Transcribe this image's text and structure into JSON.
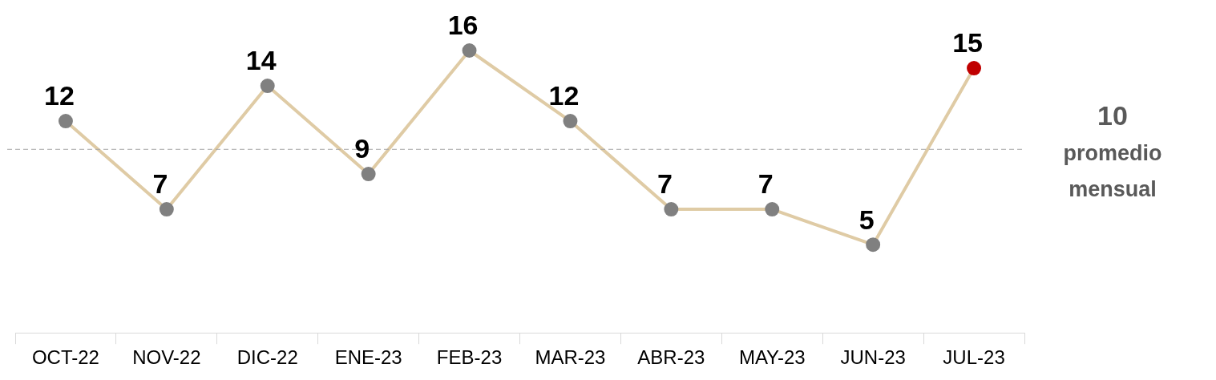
{
  "chart_data": {
    "type": "line",
    "categories": [
      "OCT-22",
      "NOV-22",
      "DIC-22",
      "ENE-23",
      "FEB-23",
      "MAR-23",
      "ABR-23",
      "MAY-23",
      "JUN-23",
      "JUL-23"
    ],
    "series": [
      {
        "color": "#dfcba5",
        "colors": [
          "#808080",
          "#808080",
          "#808080",
          "#808080",
          "#808080",
          "#808080",
          "#808080",
          "#808080",
          "#808080",
          "#c00000"
        ],
        "values": [
          12,
          7,
          14,
          9,
          16,
          12,
          7,
          7,
          5,
          15
        ]
      }
    ],
    "tick_labels": "x",
    "grid": false,
    "legend": false,
    "marker": "circle",
    "line_style": "solid",
    "data_labels": true,
    "ref_lines": [
      {
        "axis": "y",
        "value": 10.4,
        "label": "10 promedio mensual",
        "color": "#a6a6a6",
        "line_style": "dashed"
      }
    ]
  }
}
